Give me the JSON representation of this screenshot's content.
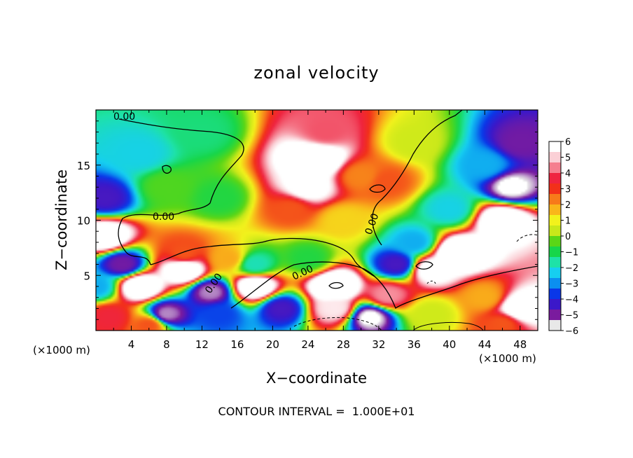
{
  "chart_data": {
    "type": "heatmap",
    "title": "zonal velocity",
    "xlabel": "X−coordinate",
    "ylabel": "Z−coordinate",
    "x_unit": "(×1000 m)",
    "x_unit_right": "(×1000 m)",
    "xlim": [
      0,
      50
    ],
    "ylim": [
      0,
      20
    ],
    "x_ticks": [
      4,
      8,
      12,
      16,
      20,
      24,
      28,
      32,
      36,
      40,
      44,
      48
    ],
    "y_ticks": [
      5,
      10,
      15
    ],
    "colorbar": {
      "vmin": -6,
      "vmax": 6,
      "ticks": [
        6,
        5,
        4,
        3,
        2,
        1,
        0,
        -1,
        -2,
        -3,
        -4,
        -5,
        -6
      ],
      "tick_labels": [
        "6",
        "5",
        "4",
        "3",
        "2",
        "1",
        "0",
        "−1",
        "−2",
        "−3",
        "−4",
        "−5",
        "−6"
      ],
      "over_color": "#ffffff",
      "under_color": "#ffffff",
      "colors": [
        "#e8e8e8",
        "#7a1b9e",
        "#3b18c9",
        "#0a37e8",
        "#0b8ff0",
        "#16cff0",
        "#1ee2a8",
        "#17d64a",
        "#5ad617",
        "#c8e81a",
        "#f2f21c",
        "#f9b61a",
        "#f77a1a",
        "#f2301a",
        "#ef2440",
        "#f57f8f",
        "#fbd0d6",
        "#ffffff"
      ]
    },
    "contour_labels": [
      "0.00",
      "0.00",
      "0.00",
      "0.00",
      "0.00"
    ],
    "footer": "CONTOUR INTERVAL =  1.000E+01",
    "features": [
      {
        "x": 25,
        "z": 15.5,
        "value": 9
      },
      {
        "x": 24,
        "z": 13,
        "value": 7
      },
      {
        "x": 26,
        "z": 18,
        "value": 4.5
      },
      {
        "x": 22,
        "z": 11,
        "value": 3
      },
      {
        "x": 30,
        "z": 14,
        "value": 2.5
      },
      {
        "x": 28,
        "z": 10,
        "value": 1.5
      },
      {
        "x": 33,
        "z": 13.5,
        "value": 3
      },
      {
        "x": 36,
        "z": 17,
        "value": 0.5
      },
      {
        "x": 5,
        "z": 16,
        "value": -2.5
      },
      {
        "x": 12,
        "z": 18,
        "value": -1.5
      },
      {
        "x": 8,
        "z": 13,
        "value": -0.5
      },
      {
        "x": 14,
        "z": 12,
        "value": -1
      },
      {
        "x": 1,
        "z": 12,
        "value": -5
      },
      {
        "x": 44,
        "z": 15,
        "value": -3
      },
      {
        "x": 48,
        "z": 17,
        "value": -5.5
      },
      {
        "x": 47,
        "z": 13,
        "value": -6.5
      },
      {
        "x": 46,
        "z": 10,
        "value": 8
      },
      {
        "x": 40,
        "z": 11,
        "value": -2.5
      },
      {
        "x": 36,
        "z": 8,
        "value": -3
      },
      {
        "x": 41,
        "z": 7,
        "value": 9
      },
      {
        "x": 38,
        "z": 5.5,
        "value": 7
      },
      {
        "x": 1,
        "z": 8.5,
        "value": 8
      },
      {
        "x": 3,
        "z": 6,
        "value": -5.5
      },
      {
        "x": 5,
        "z": 4,
        "value": 8
      },
      {
        "x": 8,
        "z": 1.5,
        "value": -6
      },
      {
        "x": 10,
        "z": 5.5,
        "value": 8
      },
      {
        "x": 10,
        "z": 7,
        "value": 3
      },
      {
        "x": 15,
        "z": 6.5,
        "value": 2
      },
      {
        "x": 13,
        "z": 3.5,
        "value": -6
      },
      {
        "x": 18,
        "z": 4,
        "value": 8
      },
      {
        "x": 18,
        "z": 6,
        "value": -2
      },
      {
        "x": 14,
        "z": 1.5,
        "value": -4
      },
      {
        "x": 21,
        "z": 2,
        "value": -5
      },
      {
        "x": 24,
        "z": 6.5,
        "value": -1
      },
      {
        "x": 27,
        "z": 4,
        "value": 9
      },
      {
        "x": 27,
        "z": 2,
        "value": 6
      },
      {
        "x": 31,
        "z": 1.2,
        "value": -6.5
      },
      {
        "x": 33,
        "z": 3.2,
        "value": 5
      },
      {
        "x": 34,
        "z": 6,
        "value": -5
      },
      {
        "x": 38,
        "z": 1.5,
        "value": 0.5
      },
      {
        "x": 44,
        "z": 3,
        "value": 2
      },
      {
        "x": 48,
        "z": 2,
        "value": 8
      },
      {
        "x": 46,
        "z": 0.6,
        "value": 3
      },
      {
        "x": 1.5,
        "z": 1.2,
        "value": 4
      },
      {
        "x": 0,
        "z": 4,
        "value": -3
      },
      {
        "x": 6,
        "z": 0.5,
        "value": 3
      }
    ]
  }
}
